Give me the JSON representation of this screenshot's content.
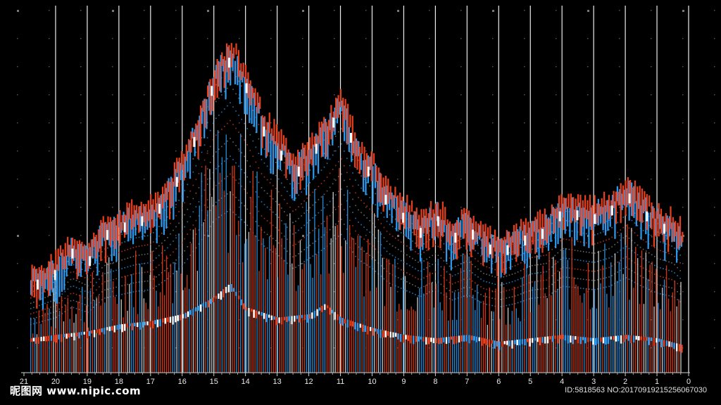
{
  "chart_data": {
    "type": "bar",
    "title": "",
    "xlabel": "",
    "ylabel": "",
    "x_tick_labels": [
      "21",
      "20",
      "19",
      "18",
      "17",
      "16",
      "15",
      "14",
      "13",
      "12",
      "11",
      "10",
      "9",
      "8",
      "7",
      "6",
      "5",
      "4",
      "3",
      "2",
      "1",
      "0"
    ],
    "x_range": [
      21,
      0
    ],
    "y_range": [
      0,
      100
    ],
    "grid": true,
    "legend": "none",
    "series": [
      {
        "color": "#e8401c",
        "envelope_x": [
          20.8,
          20,
          19.5,
          19,
          18.5,
          18,
          17.5,
          17,
          16.5,
          16,
          15.5,
          15,
          14.5,
          14,
          13.5,
          13,
          12.5,
          12,
          11.5,
          11,
          10.5,
          10,
          9.5,
          9,
          8.5,
          8,
          7.5,
          7,
          6.5,
          6,
          5.5,
          5,
          4.5,
          4,
          3.5,
          3,
          2.5,
          2,
          1.5,
          1,
          0.5,
          0.2
        ],
        "envelope_y": [
          28,
          32,
          38,
          35,
          43,
          45,
          47,
          48,
          54,
          62,
          74,
          88,
          94,
          86,
          74,
          68,
          60,
          66,
          72,
          80,
          66,
          60,
          52,
          48,
          44,
          48,
          42,
          45,
          40,
          38,
          40,
          43,
          44,
          50,
          49,
          48,
          50,
          55,
          50,
          46,
          44,
          40
        ]
      },
      {
        "color": "#2d9bf0",
        "envelope_x": [
          20.8,
          20,
          19.5,
          19,
          18.5,
          18,
          17.5,
          17,
          16.5,
          16,
          15.5,
          15,
          14.5,
          14,
          13.5,
          13,
          12.5,
          12,
          11.5,
          11,
          10.5,
          10,
          9.5,
          9,
          8.5,
          8,
          7.5,
          7,
          6.5,
          6,
          5.5,
          5,
          4.5,
          4,
          3.5,
          3,
          2.5,
          2,
          1.5,
          1,
          0.5,
          0.2
        ],
        "envelope_y": [
          26,
          30,
          36,
          33,
          41,
          43,
          45,
          46,
          52,
          60,
          72,
          86,
          92,
          84,
          72,
          66,
          58,
          64,
          70,
          78,
          64,
          58,
          50,
          46,
          42,
          46,
          40,
          43,
          38,
          36,
          38,
          41,
          42,
          48,
          47,
          46,
          48,
          53,
          48,
          44,
          42,
          38
        ]
      },
      {
        "color": "#ffffff",
        "envelope_x": [
          20.8,
          20,
          19,
          18,
          17,
          16,
          15,
          14.5,
          14,
          13,
          12,
          11.5,
          11,
          10,
          9,
          8,
          7,
          6,
          5,
          4,
          3,
          2,
          1,
          0.2
        ],
        "envelope_y": [
          8,
          9,
          10,
          12,
          13,
          15,
          20,
          24,
          17,
          14,
          15,
          18,
          14,
          11,
          9,
          8,
          9,
          7,
          8,
          9,
          8,
          9,
          8,
          6
        ]
      }
    ]
  },
  "watermark": {
    "left": "昵图网 www.nipic.com",
    "right": "ID:5818563 NO:20170919215256067030"
  }
}
